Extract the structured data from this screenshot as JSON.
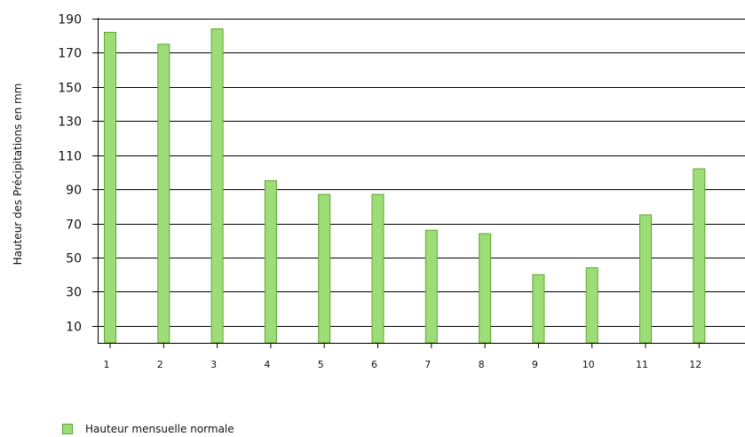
{
  "chart_data": {
    "type": "bar",
    "categories": [
      "1",
      "2",
      "3",
      "4",
      "5",
      "6",
      "7",
      "8",
      "9",
      "10",
      "11",
      "12"
    ],
    "series": [
      {
        "name": "Hauteur mensuelle normale",
        "values": [
          182,
          175,
          184,
          95,
          87,
          87,
          66,
          64,
          40,
          44,
          75,
          102
        ]
      }
    ],
    "ylabel": "Hauteur des Précipitations en mm",
    "xlabel": "",
    "yticks": [
      10,
      30,
      50,
      70,
      90,
      110,
      130,
      150,
      170,
      190
    ],
    "ylim": [
      0,
      190
    ],
    "grid": true,
    "legend_position": "bottom-left",
    "colors": {
      "bar_fill": "#9edc78",
      "bar_stroke": "#5aa82e",
      "grid": "#000000"
    }
  }
}
